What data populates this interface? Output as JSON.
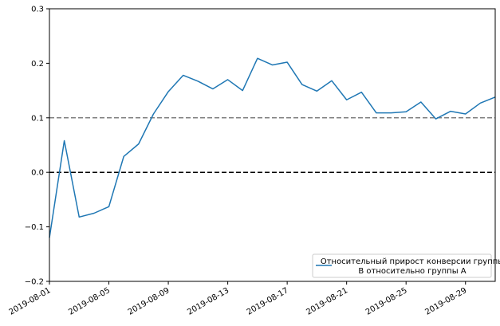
{
  "chart_data": {
    "type": "line",
    "title": "",
    "xlabel": "",
    "ylabel": "",
    "x_tick_labels": [
      "2019-08-01",
      "2019-08-05",
      "2019-08-09",
      "2019-08-13",
      "2019-08-17",
      "2019-08-21",
      "2019-08-25",
      "2019-08-29"
    ],
    "y_tick_labels": [
      "−0.2",
      "−0.1",
      "0.0",
      "0.1",
      "0.2",
      "0.3"
    ],
    "ylim": [
      -0.2,
      0.3
    ],
    "xlim": [
      "2019-08-01",
      "2019-08-31"
    ],
    "grid": false,
    "legend_position": "lower right",
    "series": [
      {
        "name": "Относительный прирост конверсии группы B относительно группы A",
        "color": "#1f77b4",
        "x": [
          "2019-08-01",
          "2019-08-02",
          "2019-08-03",
          "2019-08-04",
          "2019-08-05",
          "2019-08-06",
          "2019-08-07",
          "2019-08-08",
          "2019-08-09",
          "2019-08-10",
          "2019-08-11",
          "2019-08-12",
          "2019-08-13",
          "2019-08-14",
          "2019-08-15",
          "2019-08-16",
          "2019-08-17",
          "2019-08-18",
          "2019-08-19",
          "2019-08-20",
          "2019-08-21",
          "2019-08-22",
          "2019-08-23",
          "2019-08-24",
          "2019-08-25",
          "2019-08-26",
          "2019-08-27",
          "2019-08-28",
          "2019-08-29",
          "2019-08-30",
          "2019-08-31"
        ],
        "values": [
          -0.12,
          0.058,
          -0.082,
          -0.075,
          -0.063,
          0.029,
          0.052,
          0.107,
          0.148,
          0.178,
          0.167,
          0.153,
          0.17,
          0.15,
          0.209,
          0.197,
          0.202,
          0.161,
          0.149,
          0.168,
          0.133,
          0.147,
          0.109,
          0.109,
          0.111,
          0.129,
          0.098,
          0.112,
          0.107,
          0.127,
          0.138
        ]
      }
    ],
    "reference_lines": [
      {
        "y": 0.1,
        "color": "#808080",
        "style": "dashed"
      },
      {
        "y": 0.0,
        "color": "#000000",
        "style": "dashed"
      }
    ]
  }
}
